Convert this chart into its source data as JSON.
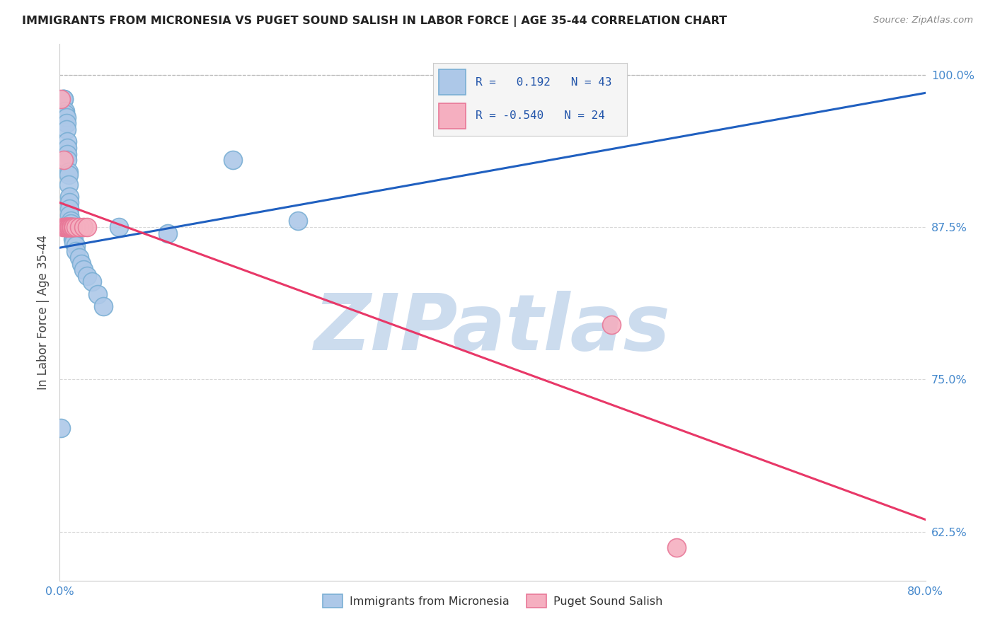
{
  "title": "IMMIGRANTS FROM MICRONESIA VS PUGET SOUND SALISH IN LABOR FORCE | AGE 35-44 CORRELATION CHART",
  "source": "Source: ZipAtlas.com",
  "ylabel": "In Labor Force | Age 35-44",
  "xlim": [
    0.0,
    0.8
  ],
  "ylim": [
    0.585,
    1.025
  ],
  "xticks": [
    0.0,
    0.1,
    0.2,
    0.3,
    0.4,
    0.5,
    0.6,
    0.7,
    0.8
  ],
  "xticklabels": [
    "0.0%",
    "",
    "",
    "",
    "",
    "",
    "",
    "",
    "80.0%"
  ],
  "yticks": [
    0.625,
    0.75,
    0.875,
    1.0
  ],
  "yticklabels": [
    "62.5%",
    "75.0%",
    "87.5%",
    "100.0%"
  ],
  "blue_label": "Immigrants from Micronesia",
  "pink_label": "Puget Sound Salish",
  "R_blue": "0.192",
  "N_blue": "43",
  "R_pink": "-0.540",
  "N_pink": "24",
  "blue_color": "#adc8e8",
  "pink_color": "#f5afc0",
  "blue_edge": "#7aafd4",
  "pink_edge": "#e87898",
  "trend_blue": "#2060c0",
  "trend_pink": "#e83868",
  "watermark": "ZIPatlas",
  "watermark_color": "#ccdcee",
  "blue_scatter_x": [
    0.001,
    0.003,
    0.004,
    0.004,
    0.005,
    0.005,
    0.006,
    0.006,
    0.006,
    0.007,
    0.007,
    0.007,
    0.007,
    0.008,
    0.008,
    0.008,
    0.009,
    0.009,
    0.009,
    0.009,
    0.01,
    0.01,
    0.01,
    0.011,
    0.011,
    0.011,
    0.012,
    0.012,
    0.013,
    0.013,
    0.015,
    0.015,
    0.018,
    0.02,
    0.022,
    0.025,
    0.03,
    0.035,
    0.04,
    0.055,
    0.1,
    0.16,
    0.22
  ],
  "blue_scatter_y": [
    0.71,
    0.98,
    0.98,
    0.98,
    0.97,
    0.968,
    0.965,
    0.96,
    0.955,
    0.945,
    0.94,
    0.935,
    0.93,
    0.92,
    0.918,
    0.91,
    0.9,
    0.895,
    0.89,
    0.885,
    0.88,
    0.878,
    0.875,
    0.875,
    0.875,
    0.872,
    0.87,
    0.865,
    0.865,
    0.862,
    0.86,
    0.855,
    0.85,
    0.845,
    0.84,
    0.835,
    0.83,
    0.82,
    0.81,
    0.875,
    0.87,
    0.93,
    0.88
  ],
  "pink_scatter_x": [
    0.001,
    0.003,
    0.004,
    0.005,
    0.005,
    0.006,
    0.006,
    0.007,
    0.007,
    0.008,
    0.008,
    0.009,
    0.009,
    0.01,
    0.01,
    0.011,
    0.012,
    0.013,
    0.015,
    0.018,
    0.022,
    0.025,
    0.51,
    0.57
  ],
  "pink_scatter_y": [
    0.98,
    0.875,
    0.93,
    0.875,
    0.875,
    0.875,
    0.875,
    0.875,
    0.875,
    0.875,
    0.875,
    0.875,
    0.875,
    0.875,
    0.875,
    0.875,
    0.875,
    0.875,
    0.875,
    0.875,
    0.875,
    0.875,
    0.795,
    0.612
  ],
  "blue_trend_x": [
    0.0,
    0.8
  ],
  "blue_trend_y": [
    0.858,
    0.985
  ],
  "pink_trend_x": [
    0.0,
    0.8
  ],
  "pink_trend_y": [
    0.895,
    0.635
  ],
  "dash_line_y": 1.0,
  "grid_color": "#d8d8d8",
  "bg_color": "#ffffff"
}
